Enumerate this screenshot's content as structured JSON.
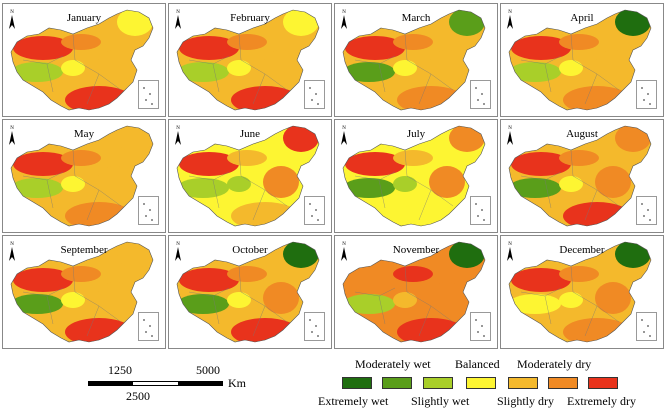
{
  "figure": {
    "months": [
      "January",
      "February",
      "March",
      "April",
      "May",
      "June",
      "July",
      "August",
      "September",
      "October",
      "November",
      "December"
    ],
    "north_label": "N"
  },
  "scale": {
    "label_a": "1250",
    "label_b": "5000",
    "label_c": "2500",
    "unit": "Km"
  },
  "legend": {
    "categories": [
      {
        "label": "Extremely wet",
        "color": "#1f6e0f"
      },
      {
        "label": "Moderately wet",
        "color": "#5a9e1a"
      },
      {
        "label": "Slightly wet",
        "color": "#a9cf29"
      },
      {
        "label": "Balanced",
        "color": "#fdf532"
      },
      {
        "label": "Slightly dry",
        "color": "#f4b92c"
      },
      {
        "label": "Moderately dry",
        "color": "#f08a24"
      },
      {
        "label": "Extremely dry",
        "color": "#e8331c"
      }
    ]
  }
}
